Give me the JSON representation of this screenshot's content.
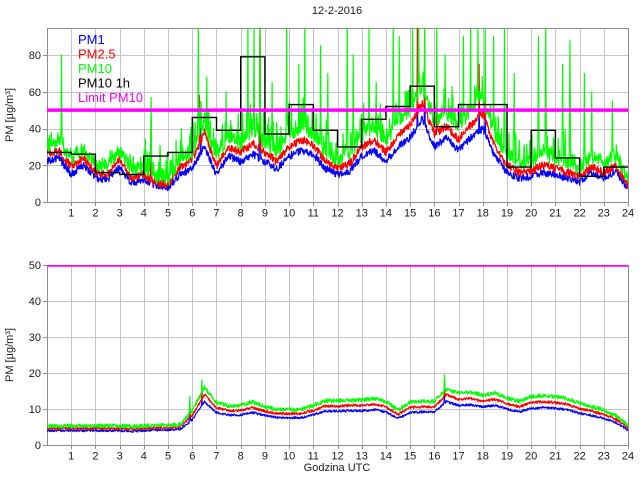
{
  "figure": {
    "title": "12-2-2016",
    "background": "#ffffff",
    "legend": [
      {
        "label": "PM1",
        "color": "#0000ff"
      },
      {
        "label": "PM2.5",
        "color": "#ff0000"
      },
      {
        "label": "PM10",
        "color": "#00ff00"
      },
      {
        "label": "PM10 1h",
        "color": "#000000"
      },
      {
        "label": "Limit PM10",
        "color": "#ff00ff"
      }
    ]
  },
  "chart_data": [
    {
      "type": "line",
      "title": "12-2-2016",
      "xlabel": "",
      "ylabel": "PM [µg/m³]",
      "xlim": [
        0,
        24
      ],
      "ylim": [
        0,
        94.7
      ],
      "xticks": [
        1,
        2,
        3,
        4,
        5,
        6,
        7,
        8,
        9,
        10,
        11,
        12,
        13,
        14,
        15,
        16,
        17,
        18,
        19,
        20,
        21,
        22,
        23,
        24
      ],
      "yticks": [
        0,
        20,
        40,
        60,
        80
      ],
      "grid": true,
      "legend_position": "top-left-inside",
      "anchor_step_h": 0.5,
      "spike_halfwidth_h": 0.035,
      "series": [
        {
          "name": "PM1",
          "color": "#0000ff",
          "noise": 2.0,
          "values": [
            22,
            24,
            15,
            20,
            13,
            12,
            19,
            10,
            12,
            9,
            8,
            15,
            18,
            30,
            15,
            25,
            22,
            26,
            22,
            18,
            25,
            28,
            26,
            18,
            15,
            17,
            25,
            28,
            22,
            30,
            35,
            45,
            30,
            35,
            28,
            35,
            40,
            25,
            16,
            13,
            14,
            16,
            15,
            13,
            11,
            16,
            13,
            17,
            7
          ],
          "spikes": [
            [
              4.3,
              36
            ],
            [
              6.35,
              42
            ],
            [
              8.8,
              90
            ],
            [
              15.3,
              62
            ],
            [
              15.6,
              83
            ],
            [
              17.85,
              58
            ],
            [
              18.1,
              55
            ]
          ]
        },
        {
          "name": "PM2.5",
          "color": "#ff0000",
          "noise": 2.2,
          "values": [
            26,
            28,
            19,
            24,
            16,
            15,
            23,
            13,
            15,
            10.5,
            9.5,
            19,
            23,
            38,
            19,
            30,
            27,
            32,
            27,
            22,
            30,
            34,
            31,
            22,
            18.5,
            21,
            30,
            34,
            27,
            36,
            42,
            54,
            37,
            41,
            34,
            42,
            48,
            30,
            20,
            16,
            17,
            20,
            18,
            16,
            14,
            19,
            16,
            20,
            9
          ],
          "spikes": [
            [
              4.3,
              45
            ],
            [
              6.3,
              58
            ],
            [
              8.8,
              97
            ],
            [
              15.3,
              97
            ],
            [
              15.6,
              88
            ],
            [
              16.1,
              62
            ],
            [
              17.85,
              75
            ],
            [
              18.1,
              68
            ]
          ]
        },
        {
          "name": "PM10",
          "color": "#00ff00",
          "noise": 3.5,
          "grass": {
            "t0": 4,
            "t1": 21.5,
            "amp": 16,
            "base": 5
          },
          "values": [
            30,
            33,
            23,
            28,
            20,
            19,
            27,
            17,
            19,
            13,
            11,
            23,
            27,
            44,
            24,
            35,
            32,
            38,
            32,
            27,
            36,
            40,
            37,
            26,
            22,
            25,
            36,
            40,
            33,
            43,
            50,
            62,
            44,
            48,
            40,
            50,
            56,
            36,
            25,
            21,
            22,
            26,
            23,
            21,
            18,
            24,
            21,
            25,
            12
          ],
          "spikes": [
            [
              0.6,
              80
            ],
            [
              4.3,
              57
            ],
            [
              6.25,
              95
            ],
            [
              6.6,
              68
            ],
            [
              7.4,
              60
            ],
            [
              8.3,
              97
            ],
            [
              8.55,
              97
            ],
            [
              8.8,
              97
            ],
            [
              9.3,
              65
            ],
            [
              9.9,
              97
            ],
            [
              10.4,
              75
            ],
            [
              10.65,
              97
            ],
            [
              11.3,
              85
            ],
            [
              11.6,
              70
            ],
            [
              12.4,
              97
            ],
            [
              12.65,
              80
            ],
            [
              13.3,
              97
            ],
            [
              13.6,
              65
            ],
            [
              14.3,
              97
            ],
            [
              14.55,
              90
            ],
            [
              15.1,
              97
            ],
            [
              15.35,
              97
            ],
            [
              15.6,
              97
            ],
            [
              16.1,
              97
            ],
            [
              16.45,
              80
            ],
            [
              17.2,
              90
            ],
            [
              17.5,
              97
            ],
            [
              17.8,
              97
            ],
            [
              18.1,
              95
            ],
            [
              18.45,
              90
            ],
            [
              18.9,
              97
            ],
            [
              19.3,
              70
            ],
            [
              20.3,
              90
            ],
            [
              20.6,
              97
            ],
            [
              21.3,
              75
            ],
            [
              21.6,
              88
            ],
            [
              22.2,
              70
            ],
            [
              22.5,
              60
            ],
            [
              23.35,
              55
            ]
          ]
        },
        {
          "name": "PM10 1h",
          "color": "#000000",
          "type": "hourly-step",
          "hourly_values": [
            27,
            26,
            16,
            15,
            25,
            27,
            46,
            39,
            79,
            37,
            53,
            39,
            30,
            45,
            52,
            63,
            41,
            53,
            53,
            19,
            39,
            24,
            14,
            19
          ]
        },
        {
          "name": "Limit PM10",
          "color": "#ff00ff",
          "type": "hline",
          "value": 50,
          "line_width": 3.5
        }
      ]
    },
    {
      "type": "line",
      "title": "",
      "xlabel": "Godzina UTC",
      "ylabel": "PM [µg/m³]",
      "xlim": [
        0,
        24
      ],
      "ylim": [
        0,
        50
      ],
      "xticks": [
        1,
        2,
        3,
        4,
        5,
        6,
        7,
        8,
        9,
        10,
        11,
        12,
        13,
        14,
        15,
        16,
        17,
        18,
        19,
        20,
        21,
        22,
        23,
        24
      ],
      "yticks": [
        0,
        10,
        20,
        30,
        40,
        50
      ],
      "grid": true,
      "anchor_step_h": 0.5,
      "spike_halfwidth_h": 0.07,
      "series": [
        {
          "name": "PM1",
          "color": "#0000ff",
          "noise": 0.3,
          "values": [
            4,
            4,
            4,
            4,
            4,
            4,
            4,
            3.8,
            4,
            4.2,
            4.2,
            4.4,
            7,
            12,
            9,
            8.3,
            8.4,
            9,
            8.2,
            7.6,
            7.6,
            7.6,
            8.4,
            9.4,
            9.4,
            9.5,
            9.5,
            9.8,
            9.2,
            7.4,
            9,
            9.2,
            9.2,
            12,
            11,
            11.2,
            10.6,
            11,
            10,
            9.2,
            10.2,
            10.4,
            10.2,
            9.8,
            8.8,
            8.2,
            7.4,
            6.2,
            4.2
          ],
          "spikes": [
            [
              5.9,
              10.5
            ],
            [
              6.4,
              13.2
            ],
            [
              16.42,
              14.3
            ]
          ]
        },
        {
          "name": "PM2.5",
          "color": "#ff0000",
          "noise": 0.35,
          "values": [
            4.6,
            4.6,
            4.6,
            4.6,
            4.6,
            4.6,
            4.6,
            4.4,
            4.6,
            4.8,
            4.8,
            5,
            8.2,
            14,
            10.3,
            9.5,
            9.6,
            10.4,
            9.4,
            8.7,
            8.7,
            8.7,
            9.6,
            10.8,
            10.8,
            11,
            11,
            11.3,
            10.6,
            8.5,
            10.4,
            10.6,
            10.6,
            14,
            12.7,
            12.9,
            12.2,
            12.7,
            11.5,
            10.6,
            11.8,
            12,
            11.8,
            11.3,
            10.1,
            9.4,
            8.5,
            7.1,
            4.8
          ],
          "spikes": [
            [
              5.9,
              12
            ],
            [
              6.4,
              16.2
            ],
            [
              16.42,
              18.2
            ]
          ]
        },
        {
          "name": "PM10",
          "color": "#00ff00",
          "noise": 0.55,
          "values": [
            5.3,
            5.3,
            5.3,
            5.3,
            5.3,
            5.3,
            5.3,
            5.1,
            5.3,
            5.5,
            5.5,
            5.7,
            9.5,
            16,
            11.8,
            10.8,
            11,
            11.9,
            10.7,
            9.9,
            9.9,
            9.9,
            11,
            12.3,
            12.3,
            12.5,
            12.5,
            12.9,
            12.1,
            9.7,
            11.9,
            12.1,
            12.1,
            15.5,
            14.4,
            14.7,
            13.9,
            14.4,
            13.1,
            12.1,
            13.4,
            13.7,
            13.4,
            12.9,
            11.5,
            10.7,
            9.7,
            8.1,
            5.5
          ],
          "spikes": [
            [
              5.9,
              13.5
            ],
            [
              6.4,
              18
            ],
            [
              16.42,
              20.5
            ]
          ]
        },
        {
          "name": "Limit PM10",
          "color": "#ff00ff",
          "type": "hline",
          "value": 50,
          "line_width": 3.5
        }
      ]
    }
  ]
}
